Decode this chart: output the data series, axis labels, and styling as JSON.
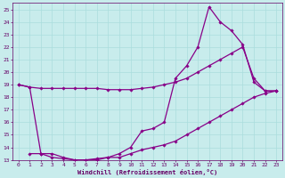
{
  "background_color": "#c8ecec",
  "grid_color": "#aadddd",
  "line_color": "#880088",
  "marker_color": "#880088",
  "xlabel": "Windchill (Refroidissement éolien,°C)",
  "xlabel_color": "#660066",
  "tick_color": "#660066",
  "xlim": [
    -0.5,
    23.5
  ],
  "ylim": [
    13,
    25.5
  ],
  "yticks": [
    13,
    14,
    15,
    16,
    17,
    18,
    19,
    20,
    21,
    22,
    23,
    24,
    25
  ],
  "xticks": [
    0,
    1,
    2,
    3,
    4,
    5,
    6,
    7,
    8,
    9,
    10,
    11,
    12,
    13,
    14,
    15,
    16,
    17,
    18,
    19,
    20,
    21,
    22,
    23
  ],
  "line1_x": [
    0,
    1,
    2,
    3,
    4,
    5,
    6,
    7,
    8,
    9,
    10,
    11,
    12,
    13,
    14,
    15,
    16,
    17,
    18,
    19,
    20,
    21,
    22,
    23
  ],
  "line1_y": [
    19.0,
    18.8,
    18.7,
    18.7,
    18.7,
    18.7,
    18.7,
    18.7,
    18.6,
    18.6,
    18.6,
    18.7,
    18.8,
    19.0,
    19.2,
    19.5,
    20.0,
    20.5,
    21.0,
    21.5,
    22.0,
    19.5,
    18.5,
    18.5
  ],
  "line2_x": [
    0,
    1,
    2,
    3,
    4,
    5,
    6,
    7,
    8,
    9,
    10,
    11,
    12,
    13,
    14,
    15,
    16,
    17,
    18,
    19,
    20,
    21,
    22,
    23
  ],
  "line2_y": [
    19.0,
    18.8,
    13.5,
    13.5,
    13.2,
    13.0,
    13.0,
    13.0,
    13.2,
    13.2,
    13.5,
    13.8,
    14.0,
    14.2,
    14.5,
    15.0,
    15.5,
    16.0,
    16.5,
    17.0,
    17.5,
    18.0,
    18.3,
    18.5
  ],
  "line3_x": [
    1,
    2,
    3,
    4,
    5,
    6,
    7,
    8,
    9,
    10,
    11,
    12,
    13,
    14,
    15,
    16,
    17,
    18,
    19,
    20,
    21,
    22,
    23
  ],
  "line3_y": [
    13.5,
    13.5,
    13.2,
    13.1,
    13.0,
    13.0,
    13.1,
    13.2,
    13.5,
    14.0,
    15.3,
    15.5,
    16.0,
    19.5,
    20.5,
    22.0,
    25.2,
    24.0,
    23.3,
    22.2,
    19.2,
    18.5,
    18.5
  ]
}
